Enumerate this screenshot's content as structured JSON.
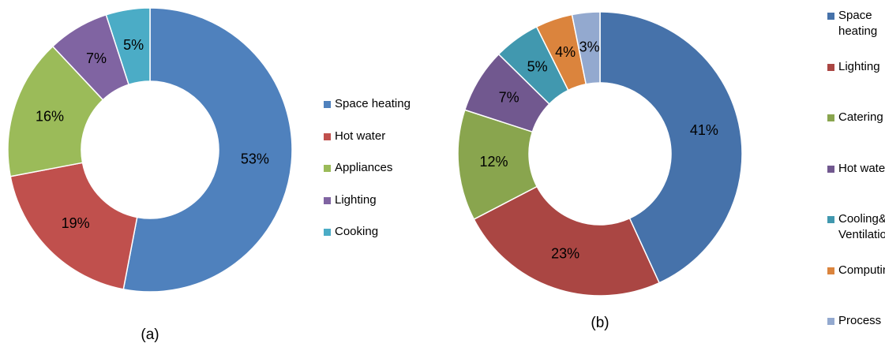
{
  "chart_data": [
    {
      "type": "donut",
      "title": "(a)",
      "categories": [
        "Space heating",
        "Hot water",
        "Appliances",
        "Lighting",
        "Cooking"
      ],
      "values": [
        53,
        19,
        16,
        7,
        5
      ],
      "value_labels": [
        "53%",
        "19%",
        "16%",
        "7%",
        "5%"
      ],
      "colors": [
        "#4f81bd",
        "#c0504d",
        "#9bbb59",
        "#8064a2",
        "#4bacc6"
      ]
    },
    {
      "type": "donut",
      "title": "(b)",
      "categories": [
        "Space heating",
        "Lighting",
        "Catering",
        "Hot water",
        "Cooling& Ventilation",
        "Computing",
        "Process"
      ],
      "values": [
        41,
        23,
        12,
        7,
        5,
        4,
        3
      ],
      "value_labels": [
        "41%",
        "23%",
        "12%",
        "7%",
        "5%",
        "4%",
        "3%"
      ],
      "colors": [
        "#4672aa",
        "#aa4643",
        "#89a54e",
        "#71588f",
        "#4198af",
        "#db843d",
        "#93a9cf"
      ]
    }
  ]
}
